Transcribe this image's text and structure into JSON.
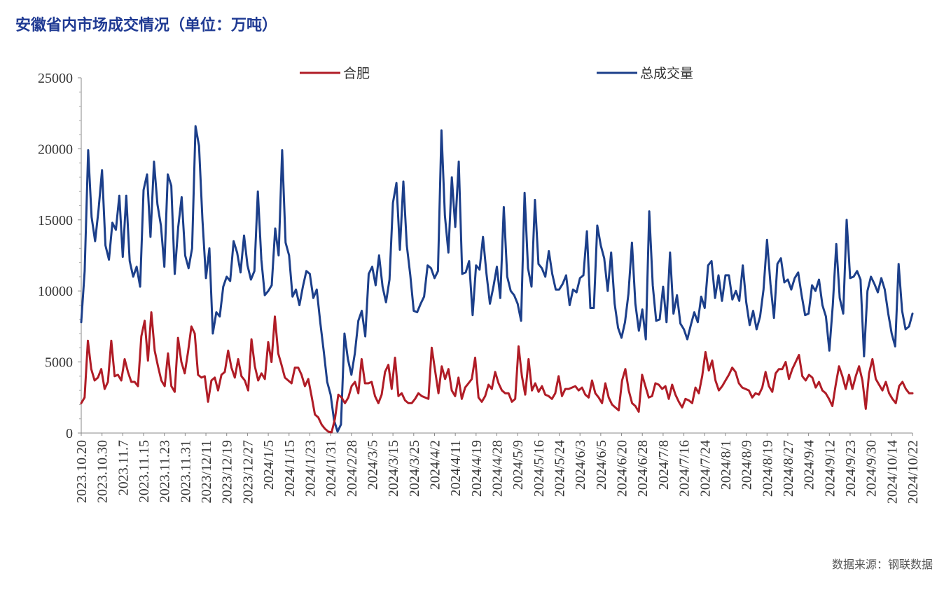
{
  "chart_data": {
    "type": "line",
    "title": "安徽省内市场成交情况（单位：万吨）",
    "source": "数据来源：钢联数据",
    "xlabel": "",
    "ylabel": "",
    "ylim": [
      0,
      25000
    ],
    "yticks": [
      0,
      5000,
      10000,
      15000,
      20000,
      25000
    ],
    "grid": false,
    "legend": "top",
    "x_tick_labels": [
      "2023.10.20",
      "2023.10.30",
      "2023.11.7",
      "2023.11.15",
      "2023.11.23",
      "2023.11.31",
      "2023/12/11",
      "2023/12/19",
      "2023/12/27",
      "2024/1/5",
      "2024/1/15",
      "2024/1/23",
      "2024/1/31",
      "2024/2/28",
      "2024/3/5",
      "2024/3/15",
      "2024/3/25",
      "2024/4/2",
      "2024/4/11",
      "2024/4/19",
      "2024/4/28",
      "2024/5/9",
      "2024/5/16",
      "2024/5/24",
      "2024/6/3",
      "2024/6/5",
      "2024/6/20",
      "2024/6/28",
      "2024/7/8",
      "2024/7/16",
      "2024/7/24",
      "2024/8/1",
      "2024/8/9",
      "2024/8/19",
      "2024/8/27",
      "2024/9/4",
      "2024/9/12",
      "2024/9/23",
      "2024/9/30",
      "2024/10/14",
      "2024/10/22"
    ],
    "series": [
      {
        "name": "合肥",
        "color": "#b01c26",
        "values": [
          2100,
          2500,
          6500,
          4500,
          3700,
          3900,
          4500,
          3100,
          3600,
          6500,
          4000,
          4100,
          3700,
          5200,
          4300,
          3600,
          3600,
          3300,
          6800,
          7900,
          5100,
          8500,
          5800,
          4700,
          3700,
          3300,
          5600,
          3300,
          2900,
          6700,
          5000,
          4200,
          5700,
          7500,
          7000,
          4100,
          3900,
          4000,
          2200,
          3700,
          3900,
          3000,
          4100,
          4300,
          5800,
          4600,
          3900,
          5200,
          4000,
          3700,
          3000,
          6600,
          4700,
          3700,
          4200,
          3800,
          6400,
          5000,
          8200,
          5600,
          4800,
          3900,
          3700,
          3500,
          4600,
          4600,
          4100,
          3300,
          3800,
          2600,
          1300,
          1100,
          600,
          300,
          100,
          50,
          1000,
          2700,
          2500,
          2100,
          2500,
          3300,
          3600,
          2800,
          5200,
          3500,
          3500,
          3600,
          2600,
          2100,
          2700,
          4300,
          4800,
          3100,
          5300,
          2600,
          2800,
          2300,
          2100,
          2100,
          2400,
          2800,
          2600,
          2500,
          2400,
          6000,
          4400,
          2800,
          4700,
          3800,
          4500,
          3000,
          2600,
          3900,
          2400,
          3200,
          3500,
          3800,
          5300,
          2500,
          2200,
          2600,
          3400,
          3100,
          4300,
          3500,
          3000,
          2800,
          2800,
          2200,
          2400,
          6100,
          4000,
          2700,
          5200,
          3000,
          3500,
          2900,
          3300,
          2700,
          2600,
          2400,
          2800,
          4000,
          2600,
          3100,
          3100,
          3200,
          3300,
          3000,
          3200,
          2700,
          2500,
          3700,
          2800,
          2500,
          2100,
          3500,
          2500,
          2000,
          1800,
          1600,
          3700,
          4500,
          3000,
          2100,
          1900,
          1500,
          4100,
          3300,
          2500,
          2600,
          3500,
          3400,
          3100,
          3300,
          2400,
          3400,
          2700,
          2200,
          1800,
          2400,
          2300,
          2100,
          3200,
          2800,
          4000,
          5700,
          4400,
          5100,
          3700,
          3000,
          3300,
          3700,
          4100,
          4600,
          4300,
          3500,
          3200,
          3100,
          3000,
          2500,
          2800,
          2700,
          3200,
          4300,
          3300,
          2900,
          4200,
          4500,
          4500,
          5000,
          3800,
          4500,
          5000,
          5500,
          4000,
          3700,
          4100,
          3900,
          3200,
          3600,
          3000,
          2800,
          2400,
          1900,
          3400,
          4700,
          4000,
          3100,
          4100,
          3100,
          4000,
          4700,
          3700,
          1700,
          4200,
          5200,
          3800,
          3400,
          3000,
          3600,
          2800,
          2400,
          2100,
          3300,
          3600,
          3100,
          2800,
          2800
        ]
      },
      {
        "name": "总成交量",
        "color": "#1c3f8a",
        "values": [
          7800,
          11400,
          19900,
          15200,
          13500,
          15700,
          18500,
          13200,
          12200,
          14800,
          14300,
          16700,
          12400,
          16700,
          12100,
          11000,
          11700,
          10300,
          17100,
          18200,
          13800,
          19100,
          16100,
          14600,
          11700,
          18200,
          17400,
          11200,
          14500,
          16600,
          12500,
          11600,
          13000,
          21600,
          20200,
          15000,
          10900,
          13000,
          7000,
          8500,
          8200,
          10300,
          11000,
          10700,
          13500,
          12700,
          11300,
          13900,
          11800,
          10800,
          11400,
          17000,
          12200,
          9700,
          10000,
          10400,
          14400,
          12500,
          19900,
          13400,
          12500,
          9600,
          10100,
          9000,
          10300,
          11400,
          11200,
          9500,
          10100,
          7800,
          5800,
          3600,
          2700,
          900,
          100,
          600,
          7000,
          5200,
          4100,
          5600,
          7900,
          8600,
          6800,
          11200,
          11700,
          10400,
          12500,
          10300,
          9200,
          10800,
          16200,
          17600,
          12900,
          17700,
          13200,
          11100,
          8600,
          8500,
          9100,
          9600,
          11800,
          11600,
          10900,
          11400,
          21300,
          15300,
          12700,
          18000,
          14500,
          19100,
          11200,
          11300,
          12100,
          8300,
          11800,
          11500,
          13800,
          11200,
          9100,
          10300,
          11700,
          9500,
          15900,
          11000,
          10000,
          9700,
          9100,
          7900,
          16900,
          11600,
          10300,
          16400,
          11900,
          11600,
          11000,
          12800,
          11200,
          10100,
          10100,
          10500,
          11100,
          9000,
          10100,
          9900,
          10900,
          11100,
          14200,
          8800,
          8800,
          14600,
          13200,
          12300,
          10000,
          12700,
          9100,
          7400,
          6700,
          7800,
          9800,
          13400,
          9100,
          7200,
          8700,
          6600,
          15600,
          10400,
          7900,
          8000,
          10300,
          7800,
          12700,
          8400,
          9700,
          7700,
          7300,
          6600,
          7600,
          8500,
          7800,
          9600,
          8800,
          11800,
          12100,
          9500,
          11100,
          9300,
          11100,
          11100,
          9400,
          10000,
          9300,
          11800,
          9200,
          7600,
          8600,
          7300,
          8200,
          10100,
          13600,
          10500,
          8100,
          11900,
          12300,
          10600,
          10800,
          10100,
          10900,
          11300,
          9700,
          8300,
          8400,
          10400,
          10000,
          10800,
          9000,
          8200,
          5800,
          9000,
          13300,
          9500,
          8400,
          15000,
          10900,
          11000,
          11400,
          10800,
          5400,
          10000,
          11000,
          10500,
          9900,
          10900,
          10100,
          8400,
          7000,
          6100,
          11900,
          8600,
          7300,
          7500,
          8400
        ]
      }
    ]
  }
}
